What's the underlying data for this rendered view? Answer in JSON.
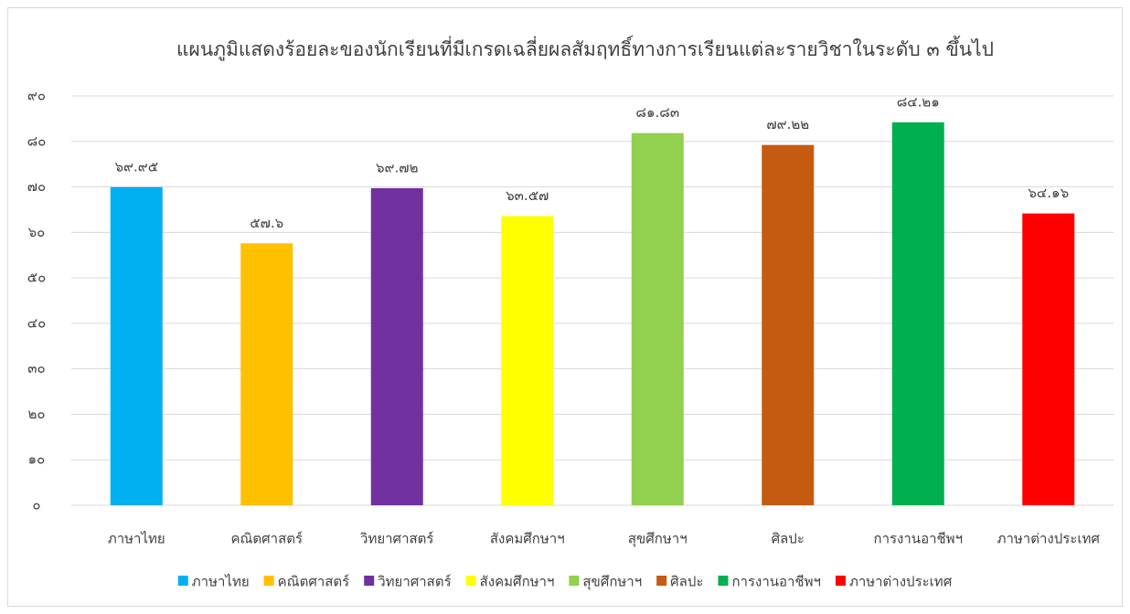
{
  "chart_data": {
    "type": "bar",
    "title": "แผนภูมิแสดงร้อยละของนักเรียนที่มีเกรดเฉลี่ยผลสัมฤทธิ์ทางการเรียนแต่ละรายวิชาในระดับ ๓ ขึ้นไป",
    "categories": [
      "ภาษาไทย",
      "คณิตศาสตร์",
      "วิทยาศาสตร์",
      "สังคมศึกษาฯ",
      "สุขศึกษาฯ",
      "ศิลปะ",
      "การงานอาชีพฯ",
      "ภาษาต่างประเทศ"
    ],
    "values": [
      69.95,
      57.6,
      69.72,
      63.57,
      81.83,
      79.22,
      84.21,
      64.16
    ],
    "value_labels": [
      "๖๙.๙๕",
      "๕๗.๖",
      "๖๙.๗๒",
      "๖๓.๕๗",
      "๘๑.๘๓",
      "๗๙.๒๒",
      "๘๔.๒๑",
      "๖๔.๑๖"
    ],
    "colors": [
      "#00b0f0",
      "#ffc000",
      "#7030a0",
      "#ffff00",
      "#92d050",
      "#c55a11",
      "#00b050",
      "#ff0000"
    ],
    "ylim": [
      0,
      90
    ],
    "yticks": [
      {
        "value": 0,
        "label": "๐"
      },
      {
        "value": 10,
        "label": "๑๐"
      },
      {
        "value": 20,
        "label": "๒๐"
      },
      {
        "value": 30,
        "label": "๓๐"
      },
      {
        "value": 40,
        "label": "๔๐"
      },
      {
        "value": 50,
        "label": "๕๐"
      },
      {
        "value": 60,
        "label": "๖๐"
      },
      {
        "value": 70,
        "label": "๗๐"
      },
      {
        "value": 80,
        "label": "๘๐"
      },
      {
        "value": 90,
        "label": "๙๐"
      }
    ],
    "grid": true,
    "legend": "bottom"
  }
}
